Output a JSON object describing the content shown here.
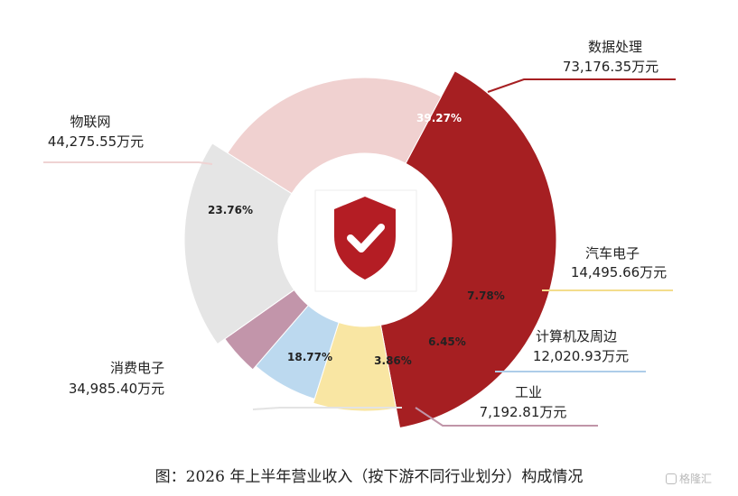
{
  "chart_data": {
    "type": "pie",
    "title": "",
    "caption": "图：2026 年上半年营业收入（按下游不同行业划分）构成情况",
    "slices": [
      {
        "name": "数据处理",
        "value": 73176.35,
        "value_label": "73,176.35万元",
        "pct_label": "39.27%",
        "percent": 39.27,
        "color": "#a61f22",
        "pct_color": "#ffffff",
        "leader_color": "#a61f22"
      },
      {
        "name": "汽车电子",
        "value": 14495.66,
        "value_label": "14,495.66万元",
        "pct_label": "7.78%",
        "percent": 7.78,
        "color": "#f9e6a3",
        "pct_color": "#222222",
        "leader_color": "#f3dd8c"
      },
      {
        "name": "计算机及周边",
        "value": 12020.93,
        "value_label": "12,020.93万元",
        "pct_label": "6.45%",
        "percent": 6.45,
        "color": "#bcd9ef",
        "pct_color": "#222222",
        "leader_color": "#aecde9"
      },
      {
        "name": "工业",
        "value": 7192.81,
        "value_label": "7,192.81万元",
        "pct_label": "3.86%",
        "percent": 3.86,
        "color": "#c295aa",
        "pct_color": "#222222",
        "leader_color": "#c095a8"
      },
      {
        "name": "消费电子",
        "value": 34985.4,
        "value_label": "34,985.40万元",
        "pct_label": "18.77%",
        "percent": 18.77,
        "color": "#e5e5e5",
        "pct_color": "#222222",
        "leader_color": "#e3e3e3"
      },
      {
        "name": "物联网",
        "value": 44275.55,
        "value_label": "44,275.55万元",
        "pct_label": "23.76%",
        "percent": 23.76,
        "color": "#f0d1d0",
        "pct_color": "#222222",
        "leader_color": "#efd3d3"
      }
    ]
  },
  "center_icon": "shield-check-icon",
  "watermark": {
    "text": "格隆汇",
    "icon": "gelonghui-logo-icon"
  }
}
